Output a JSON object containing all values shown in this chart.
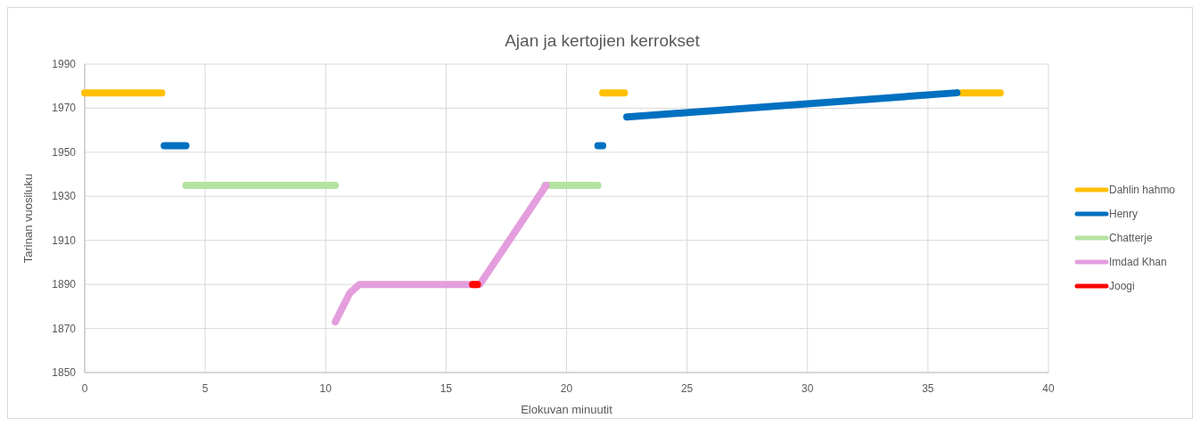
{
  "chart_data": {
    "type": "line",
    "title": "Ajan ja kertojien kerrokset",
    "xlabel": "Elokuvan minuutit",
    "ylabel": "Tarinan vuosiluku",
    "xlim": [
      0,
      40
    ],
    "xticks": [
      0,
      5,
      10,
      15,
      20,
      25,
      30,
      35,
      40
    ],
    "ylim": [
      1850,
      1990
    ],
    "yticks": [
      1850,
      1870,
      1890,
      1910,
      1930,
      1950,
      1970,
      1990
    ],
    "grid": true,
    "legend": "right",
    "marker": "none",
    "line_style": "solid",
    "series": [
      {
        "name": "Dahlin hahmo",
        "color": "#ffc000",
        "x": [
          0,
          3.2,
          3.3,
          21.5,
          22.4,
          22.5,
          36.4,
          38.0
        ],
        "values": [
          1977,
          1977,
          null,
          1977,
          1977,
          null,
          1977,
          1977
        ]
      },
      {
        "name": "Henry",
        "color": "#0070c0",
        "x": [
          3.3,
          4.2,
          4.3,
          21.3,
          21.5,
          21.6,
          22.5,
          36.2
        ],
        "values": [
          1953,
          1953,
          null,
          1953,
          1953,
          null,
          1966,
          1977
        ]
      },
      {
        "name": "Chatterje",
        "color": "#b4e3a1",
        "x": [
          4.2,
          10.4,
          10.5,
          19.1,
          21.3
        ],
        "values": [
          1935,
          1935,
          null,
          1935,
          1935
        ]
      },
      {
        "name": "Imdad Khan",
        "color": "#e49edd",
        "x": [
          10.4,
          11.0,
          11.4,
          16.4,
          19.15
        ],
        "values": [
          1873,
          1886,
          1890,
          1890,
          1935
        ]
      },
      {
        "name": "Joogi",
        "color": "#ff0000",
        "x": [
          16.1,
          16.3
        ],
        "values": [
          1890,
          1890
        ]
      }
    ]
  }
}
